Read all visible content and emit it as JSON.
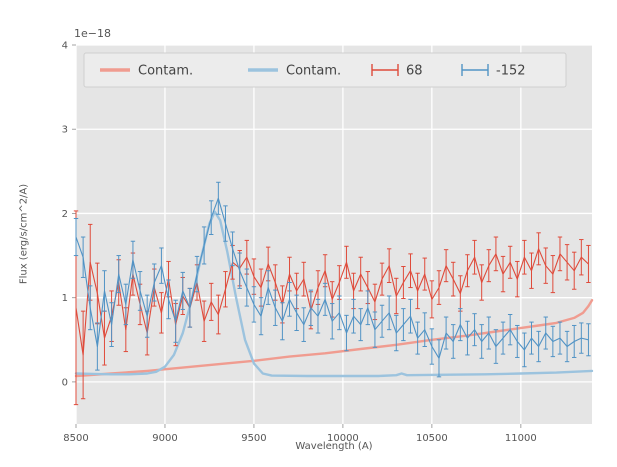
{
  "chart_data": {
    "type": "errorbar",
    "title": "",
    "offset_text": "1e−18",
    "xlabel": "Wavelength (A)",
    "ylabel": "Flux (erg/s/cm^2/A)",
    "xlim": [
      8500,
      11400
    ],
    "ylim": [
      -0.5,
      4.0
    ],
    "xticks": [
      8500,
      9000,
      9500,
      10000,
      10500,
      11000
    ],
    "yticks": [
      0,
      1,
      2,
      3,
      4
    ],
    "grid": true,
    "legend_position": "upper center",
    "colors": {
      "plot_bg": "#e5e5e5",
      "grid": "#ffffff",
      "tick_label": "#555555",
      "text": "#444444",
      "legend_bg": "#ececec",
      "legend_border": "#cfcfcf",
      "red": "#df4b3b",
      "blue": "#5193c5",
      "contam_red": "#f09c90",
      "contam_blue": "#9cc3de"
    },
    "series": [
      {
        "name": "Contam.",
        "type": "line",
        "color_key": "contam_red",
        "points": [
          [
            8500,
            0.07
          ],
          [
            8700,
            0.1
          ],
          [
            8900,
            0.13
          ],
          [
            9100,
            0.17
          ],
          [
            9300,
            0.21
          ],
          [
            9500,
            0.25
          ],
          [
            9700,
            0.3
          ],
          [
            9900,
            0.34
          ],
          [
            10100,
            0.39
          ],
          [
            10300,
            0.44
          ],
          [
            10500,
            0.5
          ],
          [
            10700,
            0.55
          ],
          [
            10900,
            0.61
          ],
          [
            11100,
            0.67
          ],
          [
            11200,
            0.7
          ],
          [
            11300,
            0.76
          ],
          [
            11350,
            0.82
          ],
          [
            11380,
            0.9
          ],
          [
            11400,
            0.97
          ]
        ]
      },
      {
        "name": "Contam.",
        "type": "line",
        "color_key": "contam_blue",
        "points": [
          [
            8500,
            0.1
          ],
          [
            8600,
            0.095
          ],
          [
            8700,
            0.09
          ],
          [
            8800,
            0.09
          ],
          [
            8900,
            0.1
          ],
          [
            8950,
            0.12
          ],
          [
            9000,
            0.18
          ],
          [
            9050,
            0.32
          ],
          [
            9100,
            0.58
          ],
          [
            9150,
            0.98
          ],
          [
            9200,
            1.45
          ],
          [
            9250,
            1.88
          ],
          [
            9280,
            2.02
          ],
          [
            9310,
            1.92
          ],
          [
            9350,
            1.55
          ],
          [
            9400,
            1.0
          ],
          [
            9450,
            0.5
          ],
          [
            9500,
            0.22
          ],
          [
            9550,
            0.1
          ],
          [
            9600,
            0.075
          ],
          [
            9800,
            0.07
          ],
          [
            10000,
            0.07
          ],
          [
            10200,
            0.07
          ],
          [
            10300,
            0.08
          ],
          [
            10330,
            0.1
          ],
          [
            10360,
            0.08
          ],
          [
            10600,
            0.085
          ],
          [
            10800,
            0.09
          ],
          [
            11000,
            0.1
          ],
          [
            11200,
            0.11
          ],
          [
            11400,
            0.13
          ]
        ]
      },
      {
        "name": "68",
        "type": "errorbar",
        "color_key": "red",
        "x_start": 8500,
        "x_step": 40,
        "values": [
          0.88,
          0.32,
          1.42,
          1.05,
          0.52,
          0.78,
          1.18,
          0.62,
          1.28,
          0.92,
          0.58,
          1.12,
          0.82,
          1.22,
          0.68,
          1.02,
          0.88,
          1.18,
          0.72,
          0.95,
          0.8,
          1.1,
          1.42,
          1.35,
          1.48,
          1.25,
          1.12,
          1.4,
          1.18,
          0.92,
          1.28,
          1.08,
          1.22,
          0.85,
          1.12,
          1.32,
          0.98,
          1.18,
          1.42,
          1.08,
          1.28,
          1.12,
          0.95,
          1.22,
          1.38,
          1.02,
          1.18,
          1.32,
          1.08,
          1.28,
          0.98,
          1.12,
          1.38,
          1.22,
          1.05,
          1.32,
          1.48,
          1.18,
          1.38,
          1.52,
          1.28,
          1.42,
          1.22,
          1.48,
          1.32,
          1.58,
          1.38,
          1.28,
          1.52,
          1.42,
          1.32,
          1.48,
          1.4
        ],
        "errors": [
          1.15,
          0.52,
          0.45,
          0.36,
          0.32,
          0.3,
          0.27,
          0.26,
          0.25,
          0.24,
          0.26,
          0.22,
          0.24,
          0.21,
          0.25,
          0.22,
          0.23,
          0.21,
          0.24,
          0.22,
          0.23,
          0.21,
          0.2,
          0.21,
          0.2,
          0.21,
          0.22,
          0.2,
          0.21,
          0.22,
          0.2,
          0.21,
          0.2,
          0.22,
          0.2,
          0.19,
          0.21,
          0.2,
          0.19,
          0.21,
          0.2,
          0.19,
          0.21,
          0.19,
          0.2,
          0.21,
          0.19,
          0.2,
          0.21,
          0.19,
          0.22,
          0.2,
          0.19,
          0.2,
          0.21,
          0.19,
          0.2,
          0.21,
          0.19,
          0.2,
          0.21,
          0.19,
          0.21,
          0.2,
          0.21,
          0.19,
          0.21,
          0.22,
          0.2,
          0.21,
          0.22,
          0.21,
          0.22
        ]
      },
      {
        "name": "-152",
        "type": "errorbar",
        "color_key": "blue",
        "x_start": 8500,
        "x_step": 40,
        "values": [
          1.72,
          1.48,
          0.88,
          0.42,
          1.08,
          0.68,
          1.28,
          0.92,
          1.45,
          1.08,
          0.78,
          1.18,
          1.38,
          0.98,
          0.72,
          1.08,
          0.88,
          1.28,
          1.62,
          1.95,
          2.18,
          1.88,
          1.58,
          1.32,
          1.12,
          0.92,
          0.78,
          1.12,
          0.88,
          0.72,
          0.98,
          0.82,
          0.68,
          0.88,
          0.78,
          0.98,
          0.72,
          0.82,
          0.58,
          0.78,
          0.68,
          0.88,
          0.62,
          0.72,
          0.82,
          0.58,
          0.68,
          0.78,
          0.52,
          0.62,
          0.42,
          0.28,
          0.58,
          0.48,
          0.68,
          0.52,
          0.62,
          0.48,
          0.58,
          0.42,
          0.52,
          0.62,
          0.48,
          0.38,
          0.52,
          0.42,
          0.58,
          0.48,
          0.52,
          0.42,
          0.48,
          0.52,
          0.5
        ],
        "errors": [
          0.22,
          0.24,
          0.26,
          0.28,
          0.24,
          0.26,
          0.22,
          0.24,
          0.22,
          0.23,
          0.25,
          0.22,
          0.21,
          0.23,
          0.25,
          0.22,
          0.23,
          0.21,
          0.22,
          0.2,
          0.19,
          0.21,
          0.2,
          0.21,
          0.22,
          0.21,
          0.22,
          0.2,
          0.21,
          0.22,
          0.2,
          0.21,
          0.2,
          0.21,
          0.2,
          0.19,
          0.21,
          0.2,
          0.21,
          0.2,
          0.19,
          0.2,
          0.21,
          0.19,
          0.2,
          0.21,
          0.19,
          0.2,
          0.19,
          0.2,
          0.21,
          0.22,
          0.19,
          0.2,
          0.19,
          0.2,
          0.19,
          0.2,
          0.19,
          0.2,
          0.19,
          0.18,
          0.19,
          0.2,
          0.19,
          0.18,
          0.19,
          0.18,
          0.19,
          0.18,
          0.19,
          0.18,
          0.19
        ]
      }
    ]
  }
}
